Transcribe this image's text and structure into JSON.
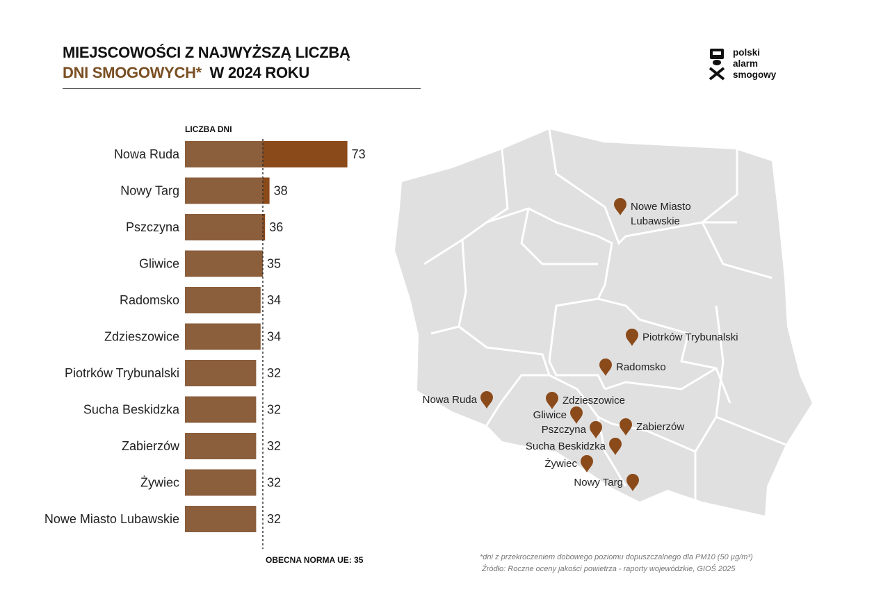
{
  "title": {
    "line1": "MIEJSCOWOŚCI Z NAJWYŻSZĄ LICZBĄ",
    "line2_accent": "DNI SMOGOWYCH*",
    "line2_rest": "W 2024 ROKU"
  },
  "logo": {
    "line1": "polski",
    "line2": "alarm",
    "line3": "smogowy"
  },
  "chart_data": {
    "type": "bar",
    "orientation": "horizontal",
    "xlabel": "LICZBA DNI",
    "categories": [
      "Nowa Ruda",
      "Nowy Targ",
      "Pszczyna",
      "Gliwice",
      "Radomsko",
      "Zdzieszowice",
      "Piotrków Trybunalski",
      "Sucha Beskidzka",
      "Zabierzów",
      "Żywiec",
      "Nowe Miasto Lubawskie"
    ],
    "values": [
      73,
      38,
      36,
      35,
      34,
      34,
      32,
      32,
      32,
      32,
      32
    ],
    "reference_line": {
      "value": 35,
      "label": "OBECNA NORMA UE: 35"
    },
    "colors": {
      "bar": "#8b5e3c",
      "above_norm": "#8b4a1a"
    }
  },
  "map": {
    "fill": "#e0e0e0",
    "pin_color": "#8b4a1a",
    "pins": [
      {
        "label": "Nowe Miasto",
        "label2": "Lubawskie"
      },
      {
        "label": "Piotrków Trybunalski"
      },
      {
        "label": "Radomsko"
      },
      {
        "label": "Nowa Ruda"
      },
      {
        "label": "Zdzieszowice"
      },
      {
        "label": "Gliwice"
      },
      {
        "label": "Pszczyna"
      },
      {
        "label": "Zabierzów"
      },
      {
        "label": "Sucha Beskidzka"
      },
      {
        "label": "Żywiec"
      },
      {
        "label": "Nowy Targ"
      }
    ]
  },
  "footnote": {
    "line1": "*dni z przekroczeniem dobowego poziomu dopuszczalnego dla PM10 (50 µg/m³)",
    "line2": "Źródło: Roczne oceny jakości powietrza - raporty wojewódzkie, GIOŚ 2025"
  }
}
